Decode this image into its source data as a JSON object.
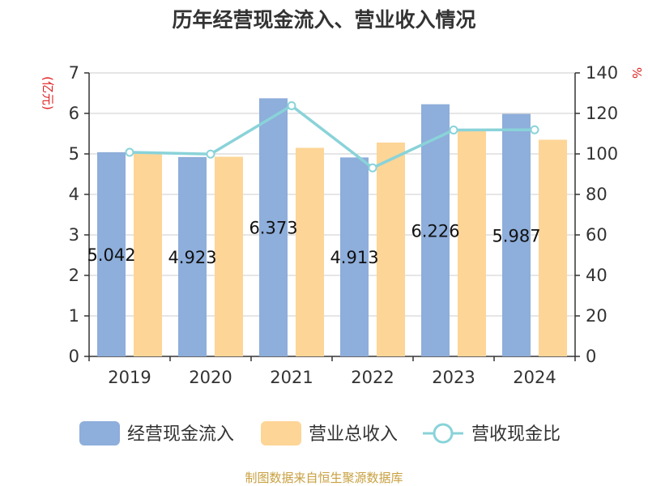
{
  "title": "历年经营现金流入、营业收入情况",
  "source": "制图数据来自恒生聚源数据库",
  "colors": {
    "inflow": "#8eaedb",
    "revenue": "#fdd597",
    "ratio": "#89d3d9",
    "axis": "#333333",
    "grid": "#cccccc",
    "unit": "#e02020"
  },
  "chart_data": {
    "type": "bar",
    "title": "历年经营现金流入、营业收入情况",
    "categories": [
      "2019",
      "2020",
      "2021",
      "2022",
      "2023",
      "2024"
    ],
    "left_axis": {
      "unit": "(亿元)",
      "ylim": [
        0,
        7
      ],
      "ticks": [
        "0",
        "1",
        "2",
        "3",
        "4",
        "5",
        "6",
        "7"
      ]
    },
    "right_axis": {
      "unit": "%",
      "ylim": [
        0,
        140
      ],
      "ticks": [
        "0",
        "20",
        "40",
        "60",
        "80",
        "100",
        "120",
        "140"
      ]
    },
    "grid": true,
    "legend_position": "bottom",
    "series": [
      {
        "name": "经营现金流入",
        "type": "bar",
        "axis": "left",
        "values": [
          5.042,
          4.923,
          6.373,
          4.913,
          6.226,
          5.987
        ],
        "labels": [
          "5.042",
          "4.923",
          "6.373",
          "4.913",
          "6.226",
          "5.987"
        ]
      },
      {
        "name": "营业总收入",
        "type": "bar",
        "axis": "left",
        "values": [
          5.0,
          4.93,
          5.15,
          5.28,
          5.57,
          5.35
        ]
      },
      {
        "name": "营收现金比",
        "type": "line",
        "axis": "right",
        "values": [
          100.8,
          99.9,
          123.8,
          93.1,
          111.8,
          111.9
        ]
      }
    ]
  }
}
